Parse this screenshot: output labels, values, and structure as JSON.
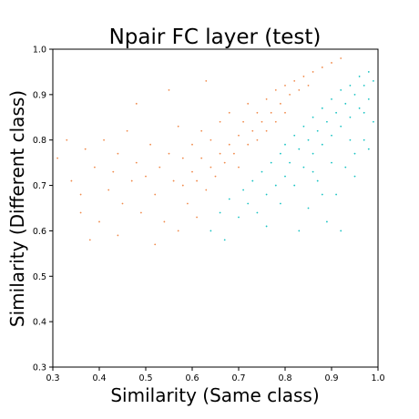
{
  "chart_data": {
    "type": "scatter",
    "title": "Npair FC layer  (test)",
    "xlabel": "Similarity (Same class)",
    "ylabel": "Similarity (Different class)",
    "xlim": [
      0.3,
      1.0
    ],
    "ylim": [
      0.3,
      1.0
    ],
    "xticks": [
      "0.3",
      "0.4",
      "0.5",
      "0.6",
      "0.7",
      "0.8",
      "0.9",
      "1.0"
    ],
    "yticks": [
      "0.3",
      "0.4",
      "0.5",
      "0.6",
      "0.7",
      "0.8",
      "0.9",
      "1.0"
    ],
    "grid": false,
    "legend": "none",
    "series": [
      {
        "color": "#f08a4b",
        "values": [
          [
            0.31,
            0.76
          ],
          [
            0.33,
            0.8
          ],
          [
            0.34,
            0.71
          ],
          [
            0.36,
            0.68
          ],
          [
            0.37,
            0.78
          ],
          [
            0.38,
            0.58
          ],
          [
            0.39,
            0.74
          ],
          [
            0.4,
            0.62
          ],
          [
            0.41,
            0.8
          ],
          [
            0.42,
            0.69
          ],
          [
            0.43,
            0.73
          ],
          [
            0.44,
            0.77
          ],
          [
            0.45,
            0.66
          ],
          [
            0.46,
            0.82
          ],
          [
            0.47,
            0.71
          ],
          [
            0.48,
            0.75
          ],
          [
            0.49,
            0.64
          ],
          [
            0.5,
            0.72
          ],
          [
            0.51,
            0.79
          ],
          [
            0.52,
            0.68
          ],
          [
            0.53,
            0.74
          ],
          [
            0.54,
            0.62
          ],
          [
            0.55,
            0.77
          ],
          [
            0.56,
            0.71
          ],
          [
            0.57,
            0.83
          ],
          [
            0.58,
            0.7
          ],
          [
            0.58,
            0.76
          ],
          [
            0.59,
            0.66
          ],
          [
            0.6,
            0.73
          ],
          [
            0.6,
            0.79
          ],
          [
            0.61,
            0.71
          ],
          [
            0.62,
            0.76
          ],
          [
            0.62,
            0.82
          ],
          [
            0.63,
            0.69
          ],
          [
            0.64,
            0.74
          ],
          [
            0.64,
            0.8
          ],
          [
            0.65,
            0.72
          ],
          [
            0.66,
            0.77
          ],
          [
            0.66,
            0.84
          ],
          [
            0.67,
            0.75
          ],
          [
            0.68,
            0.79
          ],
          [
            0.68,
            0.86
          ],
          [
            0.69,
            0.77
          ],
          [
            0.7,
            0.81
          ],
          [
            0.7,
            0.74
          ],
          [
            0.71,
            0.84
          ],
          [
            0.72,
            0.79
          ],
          [
            0.72,
            0.88
          ],
          [
            0.73,
            0.82
          ],
          [
            0.74,
            0.86
          ],
          [
            0.74,
            0.8
          ],
          [
            0.75,
            0.84
          ],
          [
            0.76,
            0.89
          ],
          [
            0.76,
            0.82
          ],
          [
            0.77,
            0.86
          ],
          [
            0.78,
            0.91
          ],
          [
            0.78,
            0.84
          ],
          [
            0.79,
            0.88
          ],
          [
            0.8,
            0.92
          ],
          [
            0.8,
            0.86
          ],
          [
            0.81,
            0.9
          ],
          [
            0.82,
            0.93
          ],
          [
            0.83,
            0.91
          ],
          [
            0.84,
            0.94
          ],
          [
            0.85,
            0.92
          ],
          [
            0.86,
            0.95
          ],
          [
            0.88,
            0.96
          ],
          [
            0.9,
            0.97
          ],
          [
            0.92,
            0.98
          ],
          [
            0.36,
            0.64
          ],
          [
            0.44,
            0.59
          ],
          [
            0.52,
            0.57
          ],
          [
            0.57,
            0.6
          ],
          [
            0.61,
            0.63
          ],
          [
            0.48,
            0.88
          ],
          [
            0.55,
            0.91
          ],
          [
            0.63,
            0.93
          ]
        ]
      },
      {
        "color": "#17c3c3",
        "values": [
          [
            0.64,
            0.6
          ],
          [
            0.66,
            0.64
          ],
          [
            0.67,
            0.58
          ],
          [
            0.68,
            0.67
          ],
          [
            0.7,
            0.63
          ],
          [
            0.71,
            0.69
          ],
          [
            0.72,
            0.66
          ],
          [
            0.73,
            0.71
          ],
          [
            0.74,
            0.64
          ],
          [
            0.75,
            0.73
          ],
          [
            0.76,
            0.68
          ],
          [
            0.77,
            0.75
          ],
          [
            0.78,
            0.7
          ],
          [
            0.79,
            0.77
          ],
          [
            0.8,
            0.72
          ],
          [
            0.8,
            0.79
          ],
          [
            0.81,
            0.75
          ],
          [
            0.82,
            0.81
          ],
          [
            0.82,
            0.7
          ],
          [
            0.83,
            0.78
          ],
          [
            0.84,
            0.83
          ],
          [
            0.84,
            0.74
          ],
          [
            0.85,
            0.8
          ],
          [
            0.86,
            0.85
          ],
          [
            0.86,
            0.77
          ],
          [
            0.87,
            0.82
          ],
          [
            0.88,
            0.87
          ],
          [
            0.88,
            0.79
          ],
          [
            0.89,
            0.84
          ],
          [
            0.9,
            0.89
          ],
          [
            0.9,
            0.81
          ],
          [
            0.91,
            0.86
          ],
          [
            0.92,
            0.91
          ],
          [
            0.92,
            0.83
          ],
          [
            0.93,
            0.88
          ],
          [
            0.94,
            0.92
          ],
          [
            0.94,
            0.85
          ],
          [
            0.95,
            0.9
          ],
          [
            0.96,
            0.94
          ],
          [
            0.96,
            0.87
          ],
          [
            0.97,
            0.92
          ],
          [
            0.98,
            0.95
          ],
          [
            0.98,
            0.89
          ],
          [
            0.99,
            0.93
          ],
          [
            0.99,
            0.84
          ],
          [
            0.97,
            0.8
          ],
          [
            0.95,
            0.77
          ],
          [
            0.93,
            0.74
          ],
          [
            0.91,
            0.68
          ],
          [
            0.89,
            0.62
          ],
          [
            0.87,
            0.71
          ],
          [
            0.85,
            0.65
          ],
          [
            0.83,
            0.6
          ],
          [
            0.92,
            0.6
          ],
          [
            0.95,
            0.72
          ],
          [
            0.98,
            0.78
          ],
          [
            0.79,
            0.66
          ],
          [
            0.76,
            0.61
          ],
          [
            0.9,
            0.75
          ],
          [
            0.94,
            0.8
          ],
          [
            0.97,
            0.86
          ],
          [
            0.86,
            0.73
          ],
          [
            0.88,
            0.68
          ]
        ]
      }
    ]
  }
}
